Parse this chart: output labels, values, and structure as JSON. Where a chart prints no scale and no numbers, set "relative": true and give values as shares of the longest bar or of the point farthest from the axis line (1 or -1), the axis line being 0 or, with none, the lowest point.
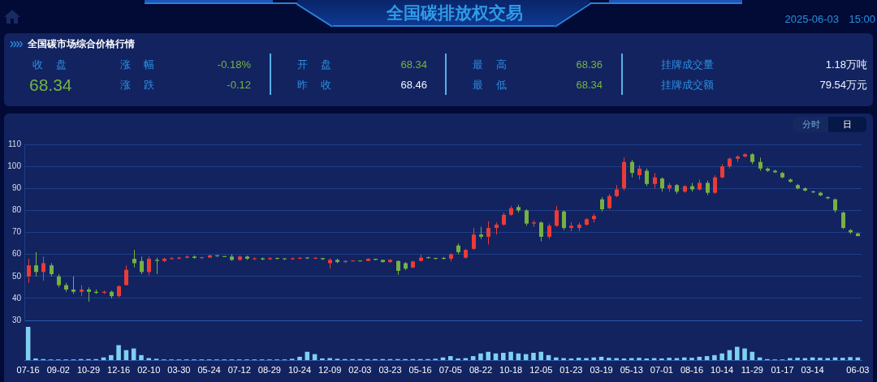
{
  "chart_data": [
    {
      "type": "other",
      "title": "全国碳排放权交易",
      "subtitle": "全国碳市场综合价格行情",
      "annotations": [
        "2025-06-03",
        "15:00",
        "收 盘",
        "68.34",
        "涨 幅",
        "-0.18%",
        "涨 跌",
        "-0.12",
        "开 盘",
        "68.34",
        "昨 收",
        "68.46",
        "最 高",
        "68.36",
        "最 低",
        "68.34",
        "挂牌成交量",
        "1.18万吨",
        "挂牌成交额",
        "79.54万元"
      ]
    },
    {
      "type": "candlestick",
      "annotations": [
        "分时",
        "日"
      ],
      "ylim": [
        30,
        110
      ],
      "yticks": [
        30,
        40,
        50,
        60,
        70,
        80,
        90,
        100,
        110
      ],
      "grid": "y",
      "categories": [
        "07-16",
        null,
        null,
        null,
        "09-02",
        null,
        null,
        null,
        "10-29",
        null,
        null,
        null,
        "12-16",
        null,
        null,
        null,
        "02-10",
        null,
        null,
        null,
        "03-30",
        null,
        null,
        null,
        "05-24",
        null,
        null,
        null,
        "07-12",
        null,
        null,
        null,
        "08-29",
        null,
        null,
        null,
        "10-24",
        null,
        null,
        null,
        "12-09",
        null,
        null,
        null,
        "02-03",
        null,
        null,
        null,
        "03-23",
        null,
        null,
        null,
        "05-16",
        null,
        null,
        null,
        "07-05",
        null,
        null,
        null,
        "08-22",
        null,
        null,
        null,
        "10-18",
        null,
        null,
        null,
        "12-05",
        null,
        null,
        null,
        "01-23",
        null,
        null,
        null,
        "03-19",
        null,
        null,
        null,
        "05-13",
        null,
        null,
        null,
        "07-01",
        null,
        null,
        null,
        "08-16",
        null,
        null,
        null,
        "10-14",
        null,
        null,
        null,
        "11-29",
        null,
        null,
        null,
        "01-17",
        null,
        null,
        null,
        "03-14",
        null,
        null,
        null,
        null,
        null,
        "06-03"
      ],
      "ohlc": [
        [
          50,
          58,
          47,
          55
        ],
        [
          55,
          61,
          50,
          52
        ],
        [
          52,
          59,
          48,
          56
        ],
        [
          55,
          56,
          50,
          51
        ],
        [
          50,
          51,
          45,
          46
        ],
        [
          46,
          47,
          43,
          44
        ],
        [
          44,
          50,
          42,
          43
        ],
        [
          43,
          46,
          41,
          44
        ],
        [
          44,
          45,
          38.5,
          43
        ],
        [
          43,
          44,
          42,
          42.5
        ],
        [
          42.5,
          43.5,
          42,
          43
        ],
        [
          43,
          43.5,
          40,
          41
        ],
        [
          41,
          46,
          40.5,
          45.5
        ],
        [
          46,
          55,
          46,
          53
        ],
        [
          58,
          62,
          54,
          56
        ],
        [
          57,
          59,
          51,
          52
        ],
        [
          52,
          59,
          50.5,
          58
        ],
        [
          57.5,
          58.5,
          51,
          57
        ],
        [
          57,
          58.5,
          56.5,
          58
        ],
        [
          57.9,
          58.7,
          57.5,
          58.3
        ],
        [
          58.1,
          58.9,
          57.7,
          58.5
        ],
        [
          58.5,
          59.5,
          58.1,
          59
        ],
        [
          59,
          59.5,
          58,
          58.4
        ],
        [
          58.3,
          58.9,
          57.9,
          58.7
        ],
        [
          58.5,
          60,
          58.5,
          59.5
        ],
        [
          59.6,
          59.6,
          58.8,
          59.2
        ],
        [
          59.2,
          59.2,
          58.8,
          58.8
        ],
        [
          59,
          60,
          57,
          57.5
        ],
        [
          57.5,
          59.5,
          57.1,
          59
        ],
        [
          59,
          59.4,
          57.5,
          58
        ],
        [
          57.8,
          58.6,
          57.4,
          58.2
        ],
        [
          58.2,
          58.6,
          57.3,
          57.7
        ],
        [
          57.8,
          58.7,
          57.4,
          58.3
        ],
        [
          58.4,
          58.4,
          57.6,
          58
        ],
        [
          58.2,
          58.2,
          57.4,
          57.8
        ],
        [
          57.8,
          58.6,
          57.4,
          58.2
        ],
        [
          58,
          58.8,
          58,
          58.4
        ],
        [
          58.6,
          58.6,
          57.8,
          58.2
        ],
        [
          58,
          58.8,
          58,
          58.4
        ],
        [
          58.3,
          58.3,
          57.4,
          57.8
        ],
        [
          56,
          58.3,
          53.5,
          57.5
        ],
        [
          57.5,
          58,
          56,
          56.5
        ],
        [
          56.5,
          57.4,
          56.1,
          57
        ],
        [
          56.8,
          57.2,
          56.8,
          57.2
        ],
        [
          57.2,
          57.2,
          56.8,
          56.8
        ],
        [
          57,
          58.2,
          57,
          58
        ],
        [
          58,
          58,
          57.3,
          57.5
        ],
        [
          57.5,
          57.5,
          56.3,
          56.5
        ],
        [
          56.5,
          57.9,
          56.1,
          57.5
        ],
        [
          57,
          57.2,
          50.7,
          52.5
        ],
        [
          56,
          56.5,
          52.8,
          53.5
        ],
        [
          54,
          57,
          53.8,
          56.8
        ],
        [
          57,
          60,
          56.8,
          58.5
        ],
        [
          58.7,
          59,
          58,
          58.3
        ],
        [
          58.4,
          58.4,
          57.6,
          58
        ],
        [
          58.4,
          58.8,
          57.6,
          58
        ],
        [
          58,
          60.5,
          56.8,
          60
        ],
        [
          64,
          65,
          60,
          61
        ],
        [
          58.5,
          62.5,
          58,
          62
        ],
        [
          62.5,
          72,
          62,
          69
        ],
        [
          69,
          72.5,
          67,
          68
        ],
        [
          68,
          75,
          64.5,
          72
        ],
        [
          72,
          74.5,
          69,
          73.5
        ],
        [
          73.5,
          79,
          73,
          78
        ],
        [
          78,
          82,
          77.5,
          81
        ],
        [
          81.5,
          82.5,
          79,
          80
        ],
        [
          80,
          80.5,
          73,
          74
        ],
        [
          74,
          75.5,
          72.5,
          74.5
        ],
        [
          74.5,
          75,
          66,
          68
        ],
        [
          68,
          74,
          67,
          73
        ],
        [
          73,
          82,
          72.5,
          80
        ],
        [
          79.5,
          80,
          71,
          72
        ],
        [
          72,
          74.5,
          70.5,
          73
        ],
        [
          72,
          74.5,
          70.5,
          73.5
        ],
        [
          73.5,
          76.5,
          73,
          76
        ],
        [
          76,
          78.5,
          74.5,
          77.5
        ],
        [
          85,
          86,
          79.5,
          80.5
        ],
        [
          81,
          87.5,
          80.5,
          86.5
        ],
        [
          86.5,
          91.5,
          86,
          89.5
        ],
        [
          90,
          104,
          89,
          102
        ],
        [
          102,
          103,
          95,
          97
        ],
        [
          96,
          100.5,
          94,
          99
        ],
        [
          98,
          99,
          91,
          92
        ],
        [
          92,
          97,
          90,
          95
        ],
        [
          94.5,
          95,
          88.5,
          90
        ],
        [
          90,
          92.5,
          88.5,
          91.5
        ],
        [
          91.5,
          92,
          87.5,
          88.5
        ],
        [
          88.5,
          91.5,
          88,
          91
        ],
        [
          91,
          92.5,
          88.5,
          89.5
        ],
        [
          89.5,
          94,
          89,
          92.5
        ],
        [
          92.5,
          93.5,
          87,
          88
        ],
        [
          88,
          96,
          87.5,
          95
        ],
        [
          95,
          101,
          94.5,
          100
        ],
        [
          100,
          104,
          99,
          103.5
        ],
        [
          103.5,
          105,
          102,
          104.5
        ],
        [
          104.5,
          106,
          104,
          105.5
        ],
        [
          105.5,
          106,
          101,
          102
        ],
        [
          102,
          104,
          98,
          99
        ],
        [
          99,
          99.5,
          97.5,
          98
        ],
        [
          98,
          98.5,
          97,
          97.3
        ],
        [
          97,
          97.5,
          94.5,
          95
        ],
        [
          94,
          94.5,
          92.6,
          93
        ],
        [
          91.5,
          92,
          89.5,
          90
        ],
        [
          90,
          90.5,
          88.6,
          89
        ],
        [
          88.6,
          89,
          87.8,
          88.2
        ],
        [
          88,
          88.5,
          86.4,
          86.8
        ],
        [
          86,
          86.4,
          85.1,
          85.5
        ],
        [
          85,
          85.4,
          79,
          80
        ],
        [
          79,
          79.5,
          71.5,
          72
        ],
        [
          71,
          71.5,
          69.3,
          70
        ],
        [
          69.5,
          69.9,
          68.3,
          68.3
        ]
      ],
      "colors": [
        "#eb3b35",
        "#76b041",
        "#eb3b35",
        "#76b041",
        "#76b041",
        "#76b041",
        "#76b041",
        "#eb3b35",
        "#76b041",
        "#76b041",
        "#eb3b35",
        "#76b041",
        "#eb3b35",
        "#eb3b35",
        "#76b041",
        "#76b041",
        "#eb3b35",
        "#76b041",
        "#eb3b35",
        "#eb3b35",
        "#eb3b35",
        "#eb3b35",
        "#76b041",
        "#eb3b35",
        "#eb3b35",
        "#76b041",
        "#76b041",
        "#76b041",
        "#eb3b35",
        "#76b041",
        "#eb3b35",
        "#76b041",
        "#eb3b35",
        "#76b041",
        "#76b041",
        "#eb3b35",
        "#eb3b35",
        "#76b041",
        "#eb3b35",
        "#76b041",
        "#eb3b35",
        "#76b041",
        "#eb3b35",
        "#eb3b35",
        "#76b041",
        "#eb3b35",
        "#76b041",
        "#76b041",
        "#eb3b35",
        "#76b041",
        "#76b041",
        "#eb3b35",
        "#eb3b35",
        "#76b041",
        "#76b041",
        "#76b041",
        "#eb3b35",
        "#76b041",
        "#eb3b35",
        "#eb3b35",
        "#76b041",
        "#eb3b35",
        "#eb3b35",
        "#eb3b35",
        "#eb3b35",
        "#76b041",
        "#76b041",
        "#eb3b35",
        "#76b041",
        "#eb3b35",
        "#eb3b35",
        "#76b041",
        "#eb3b35",
        "#eb3b35",
        "#eb3b35",
        "#eb3b35",
        "#76b041",
        "#eb3b35",
        "#eb3b35",
        "#eb3b35",
        "#76b041",
        "#eb3b35",
        "#76b041",
        "#eb3b35",
        "#76b041",
        "#eb3b35",
        "#76b041",
        "#eb3b35",
        "#76b041",
        "#eb3b35",
        "#76b041",
        "#eb3b35",
        "#eb3b35",
        "#eb3b35",
        "#eb3b35",
        "#eb3b35",
        "#76b041",
        "#76b041",
        "#76b041",
        "#76b041",
        "#76b041",
        "#76b041",
        "#76b041",
        "#76b041",
        "#76b041",
        "#76b041",
        "#76b041",
        "#76b041",
        "#76b041",
        "#76b041",
        "#76b041"
      ]
    },
    {
      "type": "bar",
      "relative": true,
      "color": "#7fcff0",
      "categories": [
        null,
        null,
        null,
        null,
        null,
        null,
        null,
        null,
        null,
        null,
        null,
        null,
        null,
        null,
        null,
        null,
        null,
        null,
        null,
        null,
        null,
        null,
        null,
        null,
        null,
        null,
        null,
        null,
        null,
        null,
        null,
        null,
        null,
        null,
        null,
        null,
        null,
        null,
        null,
        null,
        null,
        null,
        null,
        null,
        null,
        null,
        null,
        null,
        null,
        null,
        null,
        null,
        null,
        null,
        null,
        null,
        null,
        null,
        null,
        null,
        null,
        null,
        null,
        null,
        null,
        null,
        null,
        null,
        null,
        null,
        null,
        null,
        null,
        null,
        null,
        null,
        null,
        null,
        null,
        null,
        null,
        null,
        null,
        null,
        null,
        null,
        null,
        null,
        null,
        null,
        null,
        null,
        null,
        null,
        null,
        null,
        null,
        null,
        null,
        null,
        null,
        null,
        null,
        null,
        null,
        null,
        null,
        null,
        null,
        null,
        null
      ],
      "values": [
        1.0,
        0.05,
        0.03,
        0.02,
        0.02,
        0.02,
        0.02,
        0.03,
        0.03,
        0.03,
        0.08,
        0.15,
        0.45,
        0.3,
        0.35,
        0.15,
        0.06,
        0.04,
        0.02,
        0.02,
        0.02,
        0.02,
        0.02,
        0.02,
        0.02,
        0.02,
        0.02,
        0.02,
        0.02,
        0.02,
        0.02,
        0.02,
        0.02,
        0.02,
        0.02,
        0.04,
        0.1,
        0.25,
        0.18,
        0.05,
        0.06,
        0.04,
        0.03,
        0.03,
        0.03,
        0.03,
        0.03,
        0.03,
        0.03,
        0.03,
        0.03,
        0.03,
        0.03,
        0.03,
        0.04,
        0.08,
        0.12,
        0.05,
        0.06,
        0.12,
        0.2,
        0.25,
        0.2,
        0.22,
        0.25,
        0.2,
        0.18,
        0.22,
        0.25,
        0.15,
        0.08,
        0.06,
        0.05,
        0.07,
        0.06,
        0.08,
        0.1,
        0.07,
        0.06,
        0.05,
        0.06,
        0.07,
        0.05,
        0.06,
        0.05,
        0.07,
        0.06,
        0.08,
        0.07,
        0.1,
        0.12,
        0.15,
        0.2,
        0.3,
        0.4,
        0.35,
        0.25,
        0.08,
        0.03,
        0.02,
        0.02,
        0.06,
        0.07,
        0.06,
        0.08,
        0.07,
        0.06,
        0.08,
        0.07,
        0.09,
        0.08
      ]
    }
  ]
}
